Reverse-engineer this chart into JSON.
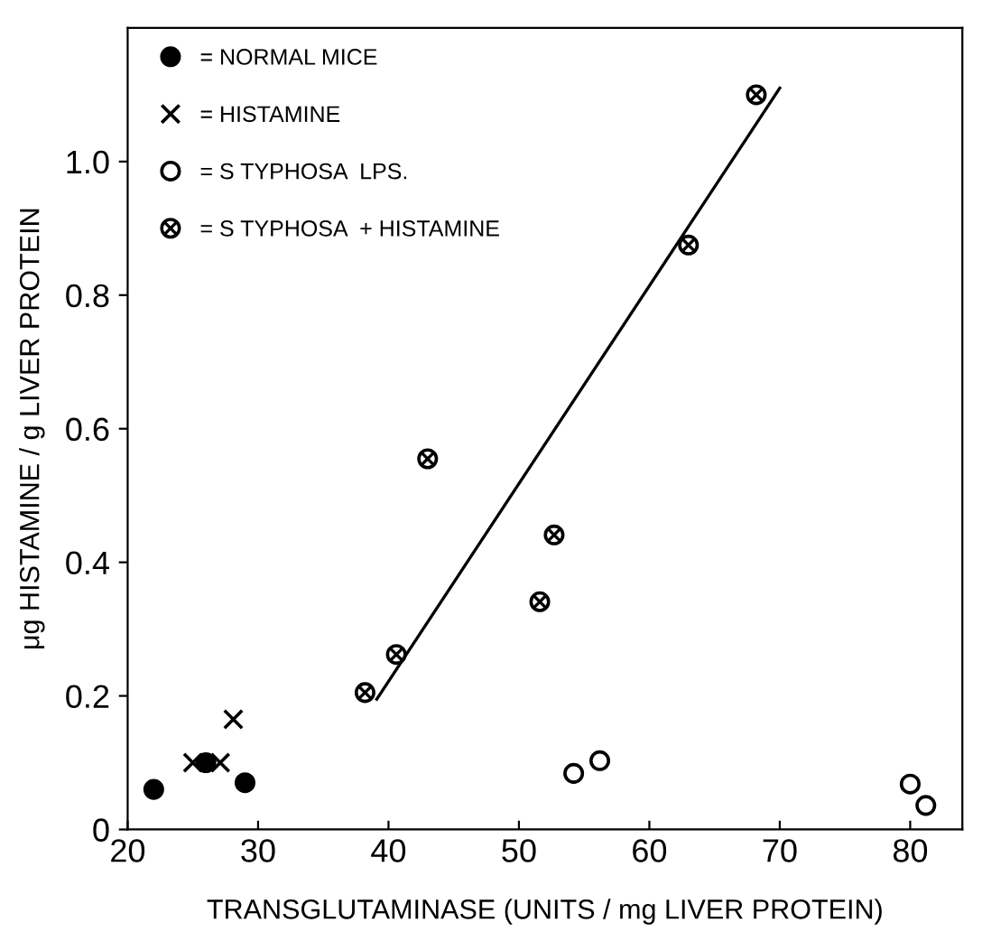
{
  "chart_data": {
    "type": "scatter",
    "xlabel": "TRANSGLUTAMINASE (UNITS / mg LIVER PROTEIN)",
    "ylabel": "μg HISTAMINE / g LIVER PROTEIN",
    "xlim": [
      20,
      84
    ],
    "ylim": [
      0,
      1.2
    ],
    "xticks": [
      20,
      30,
      40,
      50,
      60,
      70,
      80
    ],
    "yticks": [
      0,
      0.2,
      0.4,
      0.6,
      0.8,
      {
        "value": 1.0,
        "label": "1.0"
      }
    ],
    "grid": false,
    "legend": "top left",
    "series": [
      {
        "name": "= NORMAL MICE",
        "color": "#000000",
        "marker": "circle",
        "x": [
          22,
          26,
          29
        ],
        "values": [
          0.06,
          0.1,
          0.07
        ]
      },
      {
        "name": "= HISTAMINE",
        "color": "#000000",
        "marker": "cross",
        "x": [
          25,
          27.1,
          28.1
        ],
        "values": [
          0.1,
          0.1,
          0.165
        ]
      },
      {
        "name": "= S TYPHOSA  LPS.",
        "color": "#000000",
        "marker": "circle_open",
        "x": [
          54.2,
          56.2,
          80,
          81.2
        ],
        "values": [
          0.084,
          0.103,
          0.068,
          0.036
        ]
      },
      {
        "name": "= S TYPHOSA  + HISTAMINE",
        "color": "#000000",
        "marker": "circle_cross",
        "x": [
          38.2,
          40.6,
          43,
          51.6,
          52.7,
          63,
          68.2
        ],
        "values": [
          0.205,
          0.262,
          0.555,
          0.341,
          0.441,
          0.875,
          1.1
        ]
      },
      {
        "type": "line",
        "color": "#000000",
        "line_style": "solid",
        "x": [
          39.1,
          70
        ],
        "values": [
          0.195,
          1.11
        ]
      }
    ]
  }
}
